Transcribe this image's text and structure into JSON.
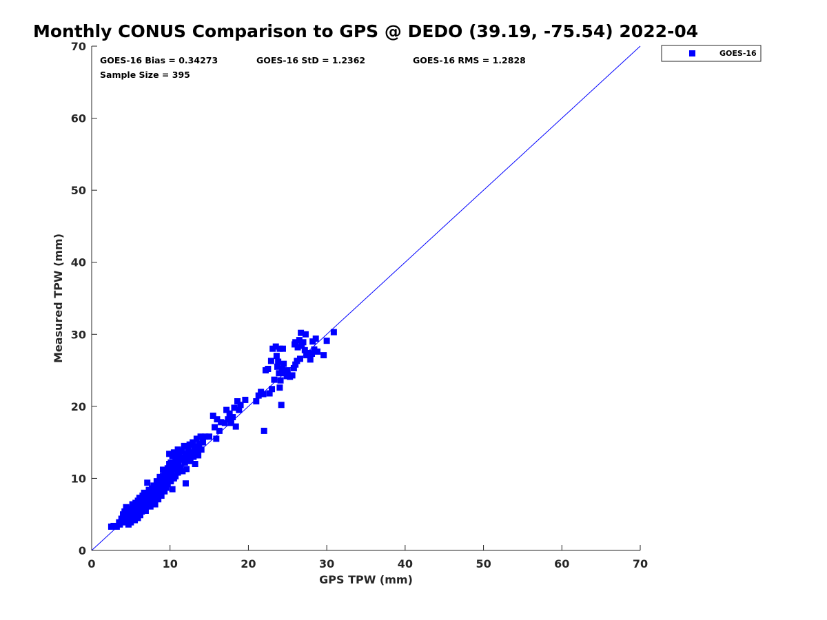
{
  "chart_data": {
    "type": "scatter",
    "title": "Monthly CONUS Comparison to GPS @ DEDO (39.19, -75.54) 2022-04",
    "xlabel": "GPS TPW (mm)",
    "ylabel": "Measured TPW (mm)",
    "xlim": [
      0,
      70
    ],
    "ylim": [
      0,
      70
    ],
    "xticks": [
      "0",
      "10",
      "20",
      "30",
      "40",
      "50",
      "60",
      "70"
    ],
    "yticks": [
      "0",
      "10",
      "20",
      "30",
      "40",
      "50",
      "60",
      "70"
    ],
    "grid": false,
    "legend_position": "outside-top-right",
    "reference_line": [
      [
        0,
        0
      ],
      [
        70,
        70
      ]
    ],
    "stats": {
      "bias": "GOES-16 Bias = 0.34273",
      "std": "GOES-16 StD = 1.2362",
      "rms": "GOES-16 RMS = 1.2828",
      "sample": "Sample Size = 395"
    },
    "series": [
      {
        "name": "GOES-16",
        "color": "#0000ff",
        "marker": "square",
        "points": [
          [
            2.5,
            3.3
          ],
          [
            2.8,
            3.4
          ],
          [
            3.2,
            3.3
          ],
          [
            3.5,
            3.9
          ],
          [
            3.8,
            4.4
          ],
          [
            3.6,
            3.6
          ],
          [
            4.0,
            5.0
          ],
          [
            4.1,
            3.9
          ],
          [
            4.3,
            4.7
          ],
          [
            4.2,
            5.4
          ],
          [
            4.4,
            6.0
          ],
          [
            4.5,
            4.2
          ],
          [
            4.6,
            5.2
          ],
          [
            4.7,
            3.6
          ],
          [
            4.8,
            4.8
          ],
          [
            4.9,
            5.8
          ],
          [
            4.9,
            4.4
          ],
          [
            5.0,
            5.4
          ],
          [
            5.0,
            3.9
          ],
          [
            5.1,
            4.9
          ],
          [
            5.2,
            5.7
          ],
          [
            5.2,
            6.4
          ],
          [
            5.3,
            4.5
          ],
          [
            5.3,
            5.3
          ],
          [
            5.4,
            6.1
          ],
          [
            5.5,
            4.2
          ],
          [
            5.5,
            5.0
          ],
          [
            5.6,
            5.6
          ],
          [
            5.6,
            6.6
          ],
          [
            5.7,
            4.7
          ],
          [
            5.8,
            5.3
          ],
          [
            5.8,
            6.0
          ],
          [
            5.9,
            6.9
          ],
          [
            5.9,
            4.5
          ],
          [
            6.0,
            5.1
          ],
          [
            6.0,
            5.8
          ],
          [
            6.1,
            6.5
          ],
          [
            6.1,
            7.3
          ],
          [
            6.2,
            4.9
          ],
          [
            6.2,
            5.6
          ],
          [
            6.3,
            6.2
          ],
          [
            6.3,
            7.0
          ],
          [
            6.4,
            5.4
          ],
          [
            6.4,
            6.0
          ],
          [
            6.5,
            6.7
          ],
          [
            6.5,
            7.6
          ],
          [
            6.6,
            5.8
          ],
          [
            6.6,
            6.4
          ],
          [
            6.7,
            7.1
          ],
          [
            6.7,
            8.0
          ],
          [
            6.8,
            6.2
          ],
          [
            6.8,
            6.8
          ],
          [
            6.9,
            7.4
          ],
          [
            6.9,
            5.5
          ],
          [
            7.0,
            6.6
          ],
          [
            7.0,
            7.2
          ],
          [
            7.1,
            7.9
          ],
          [
            7.1,
            9.4
          ],
          [
            7.2,
            6.4
          ],
          [
            7.2,
            7.0
          ],
          [
            7.3,
            7.6
          ],
          [
            7.3,
            8.4
          ],
          [
            7.4,
            6.8
          ],
          [
            7.4,
            7.4
          ],
          [
            7.5,
            8.0
          ],
          [
            7.5,
            6.1
          ],
          [
            7.6,
            7.2
          ],
          [
            7.6,
            7.8
          ],
          [
            7.7,
            8.6
          ],
          [
            7.7,
            6.6
          ],
          [
            7.8,
            7.5
          ],
          [
            7.8,
            8.2
          ],
          [
            7.9,
            9.0
          ],
          [
            8.0,
            7.0
          ],
          [
            8.0,
            7.8
          ],
          [
            8.1,
            8.5
          ],
          [
            8.1,
            6.4
          ],
          [
            8.2,
            7.4
          ],
          [
            8.2,
            8.1
          ],
          [
            8.3,
            8.8
          ],
          [
            8.3,
            9.6
          ],
          [
            8.4,
            7.8
          ],
          [
            8.4,
            8.4
          ],
          [
            8.5,
            9.2
          ],
          [
            8.5,
            7.1
          ],
          [
            8.6,
            8.1
          ],
          [
            8.6,
            8.8
          ],
          [
            8.7,
            9.5
          ],
          [
            8.7,
            10.2
          ],
          [
            8.8,
            8.4
          ],
          [
            8.8,
            9.1
          ],
          [
            8.9,
            9.8
          ],
          [
            8.9,
            7.6
          ],
          [
            9.0,
            8.8
          ],
          [
            9.0,
            9.5
          ],
          [
            9.1,
            10.3
          ],
          [
            9.1,
            11.2
          ],
          [
            9.2,
            9.1
          ],
          [
            9.2,
            9.9
          ],
          [
            9.3,
            10.6
          ],
          [
            9.3,
            8.2
          ],
          [
            9.4,
            9.4
          ],
          [
            9.4,
            10.2
          ],
          [
            9.5,
            11.0
          ],
          [
            9.5,
            8.7
          ],
          [
            9.6,
            9.8
          ],
          [
            9.6,
            10.6
          ],
          [
            9.7,
            11.4
          ],
          [
            9.7,
            9.2
          ],
          [
            9.8,
            10.1
          ],
          [
            9.8,
            10.9
          ],
          [
            9.9,
            12.0
          ],
          [
            9.9,
            13.4
          ],
          [
            10.0,
            10.5
          ],
          [
            10.0,
            11.3
          ],
          [
            10.1,
            9.6
          ],
          [
            10.1,
            12.2
          ],
          [
            10.2,
            10.8
          ],
          [
            10.2,
            11.6
          ],
          [
            10.3,
            13.1
          ],
          [
            10.3,
            8.5
          ],
          [
            10.4,
            11.2
          ],
          [
            10.4,
            12.0
          ],
          [
            10.5,
            10.0
          ],
          [
            10.5,
            13.6
          ],
          [
            10.6,
            11.5
          ],
          [
            10.7,
            12.4
          ],
          [
            10.7,
            10.3
          ],
          [
            10.8,
            11.8
          ],
          [
            10.9,
            12.8
          ],
          [
            11.0,
            14.0
          ],
          [
            11.0,
            10.8
          ],
          [
            11.1,
            12.1
          ],
          [
            11.2,
            13.3
          ],
          [
            11.3,
            11.5
          ],
          [
            11.4,
            12.6
          ],
          [
            11.5,
            13.8
          ],
          [
            11.6,
            11.0
          ],
          [
            11.7,
            12.9
          ],
          [
            11.8,
            14.5
          ],
          [
            11.9,
            12.2
          ],
          [
            12.0,
            13.4
          ],
          [
            12.0,
            9.3
          ],
          [
            12.1,
            11.3
          ],
          [
            12.2,
            12.8
          ],
          [
            12.3,
            14.0
          ],
          [
            12.4,
            13.2
          ],
          [
            12.5,
            14.7
          ],
          [
            12.6,
            12.4
          ],
          [
            12.7,
            13.6
          ],
          [
            12.9,
            15.0
          ],
          [
            13.0,
            13.0
          ],
          [
            13.1,
            14.2
          ],
          [
            13.2,
            12.0
          ],
          [
            13.3,
            13.8
          ],
          [
            13.4,
            15.5
          ],
          [
            13.5,
            14.4
          ],
          [
            13.6,
            13.2
          ],
          [
            13.7,
            14.8
          ],
          [
            13.9,
            15.8
          ],
          [
            14.0,
            14.0
          ],
          [
            14.2,
            15.0
          ],
          [
            14.5,
            15.8
          ],
          [
            15.0,
            15.8
          ],
          [
            15.5,
            18.7
          ],
          [
            15.7,
            17.1
          ],
          [
            15.9,
            15.5
          ],
          [
            16.0,
            18.2
          ],
          [
            16.3,
            16.6
          ],
          [
            16.5,
            17.8
          ],
          [
            17.0,
            17.7
          ],
          [
            17.2,
            19.5
          ],
          [
            17.4,
            18.2
          ],
          [
            17.6,
            19.0
          ],
          [
            17.8,
            17.7
          ],
          [
            18.0,
            18.5
          ],
          [
            18.2,
            19.8
          ],
          [
            18.4,
            17.2
          ],
          [
            18.6,
            20.7
          ],
          [
            18.8,
            19.5
          ],
          [
            19.0,
            20.2
          ],
          [
            19.6,
            20.9
          ],
          [
            21.0,
            20.7
          ],
          [
            21.3,
            21.5
          ],
          [
            21.6,
            22.0
          ],
          [
            21.9,
            21.7
          ],
          [
            22.0,
            16.6
          ],
          [
            22.2,
            25.0
          ],
          [
            22.5,
            25.2
          ],
          [
            22.7,
            21.8
          ],
          [
            22.9,
            26.3
          ],
          [
            23.0,
            22.4
          ],
          [
            23.1,
            28.0
          ],
          [
            23.3,
            23.7
          ],
          [
            23.5,
            28.3
          ],
          [
            23.6,
            27.0
          ],
          [
            23.7,
            25.5
          ],
          [
            23.8,
            26.2
          ],
          [
            23.9,
            24.6
          ],
          [
            24.0,
            22.6
          ],
          [
            24.0,
            28.0
          ],
          [
            24.1,
            23.6
          ],
          [
            24.2,
            20.2
          ],
          [
            24.3,
            25.2
          ],
          [
            24.4,
            28.0
          ],
          [
            24.5,
            25.9
          ],
          [
            24.6,
            24.6
          ],
          [
            24.9,
            24.2
          ],
          [
            25.0,
            25.0
          ],
          [
            25.3,
            24.1
          ],
          [
            25.6,
            24.3
          ],
          [
            25.8,
            25.3
          ],
          [
            25.9,
            28.6
          ],
          [
            26.0,
            28.9
          ],
          [
            26.0,
            25.8
          ],
          [
            26.2,
            26.3
          ],
          [
            26.3,
            28.2
          ],
          [
            26.5,
            29.2
          ],
          [
            26.6,
            26.6
          ],
          [
            26.7,
            30.2
          ],
          [
            26.8,
            28.4
          ],
          [
            27.0,
            28.9
          ],
          [
            27.2,
            27.8
          ],
          [
            27.3,
            30.0
          ],
          [
            27.4,
            27.1
          ],
          [
            27.6,
            27.4
          ],
          [
            27.9,
            26.5
          ],
          [
            28.1,
            27.3
          ],
          [
            28.2,
            29.0
          ],
          [
            28.4,
            27.9
          ],
          [
            28.6,
            29.4
          ],
          [
            28.8,
            27.6
          ],
          [
            29.6,
            27.1
          ],
          [
            30.0,
            29.1
          ],
          [
            30.9,
            30.3
          ]
        ]
      }
    ]
  }
}
